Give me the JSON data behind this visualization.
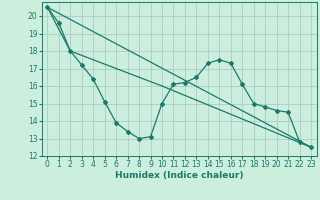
{
  "xlabel": "Humidex (Indice chaleur)",
  "background_color": "#cceedd",
  "grid_color": "#aacccc",
  "line_color": "#1a7a6a",
  "xlim": [
    -0.5,
    23.5
  ],
  "ylim": [
    12,
    20.8
  ],
  "yticks": [
    12,
    13,
    14,
    15,
    16,
    17,
    18,
    19,
    20
  ],
  "xticks": [
    0,
    1,
    2,
    3,
    4,
    5,
    6,
    7,
    8,
    9,
    10,
    11,
    12,
    13,
    14,
    15,
    16,
    17,
    18,
    19,
    20,
    21,
    22,
    23
  ],
  "series1_x": [
    0,
    1,
    2,
    3,
    4,
    5,
    6,
    7,
    8,
    9,
    10,
    11,
    12,
    13,
    14,
    15,
    16,
    17,
    18,
    19,
    20,
    21,
    22,
    23
  ],
  "series1_y": [
    20.5,
    19.6,
    18.0,
    17.2,
    16.4,
    15.1,
    13.9,
    13.4,
    13.0,
    13.1,
    15.0,
    16.1,
    16.2,
    16.5,
    17.3,
    17.5,
    17.3,
    16.1,
    15.0,
    14.8,
    14.6,
    14.5,
    12.8,
    12.5
  ],
  "series2_x": [
    0,
    2,
    10,
    23
  ],
  "series2_y": [
    20.5,
    18.0,
    16.0,
    12.5
  ],
  "series3_x": [
    0,
    23
  ],
  "series3_y": [
    20.5,
    12.5
  ],
  "figsize": [
    3.2,
    2.0
  ],
  "dpi": 100
}
